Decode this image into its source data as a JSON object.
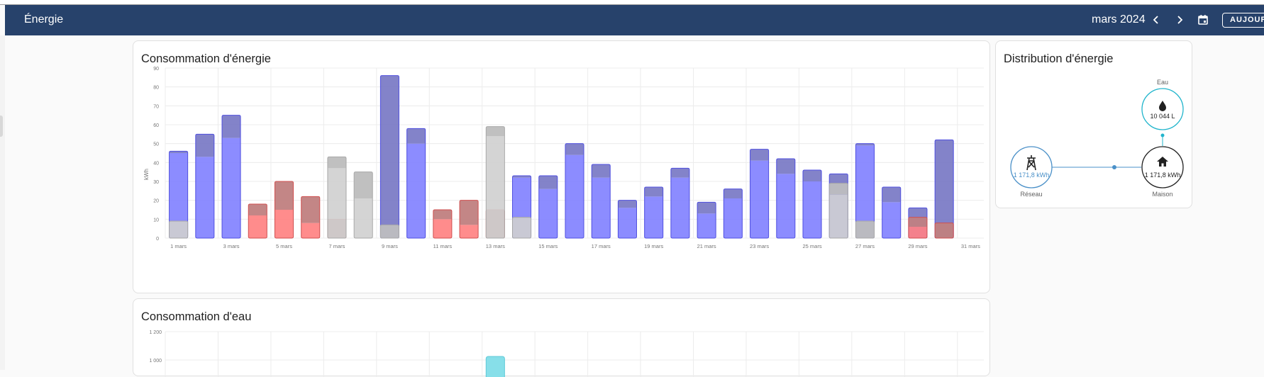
{
  "header": {
    "title": "Énergie",
    "period": "mars 2024",
    "today_label": "AUJOURD'HUI",
    "prev_icon": "chevron-left-icon",
    "next_icon": "chevron-right-icon",
    "calendar_icon": "calendar-icon"
  },
  "energy_card": {
    "title": "Consommation d'énergie"
  },
  "water_card": {
    "title": "Consommation d'eau"
  },
  "distribution_card": {
    "title": "Distribution d'énergie",
    "water_label": "Eau",
    "water_value": "10 044 L",
    "grid_label": "Réseau",
    "grid_value": "1 171,8 kWh",
    "home_label": "Maison",
    "home_value": "1 171,8 kWh"
  },
  "colors": {
    "header_bg": "#27426b",
    "low_tariff": "#8080ff",
    "low_tariff_top": "#7c7cc6",
    "high_tariff": "#ff8080",
    "high_tariff_top": "#c08080",
    "other": "#cfcfcf",
    "other_top": "#bdbdbd",
    "water": "#87dfe9",
    "distribution_line": "#4a90c8",
    "water_circle": "#21b5cc"
  },
  "chart_data": [
    {
      "type": "bar",
      "stacked": true,
      "title": "Consommation d'énergie",
      "ylabel": "kWh",
      "ylim": [
        0,
        90
      ],
      "yticks": [
        0,
        10,
        20,
        30,
        40,
        50,
        60,
        70,
        80,
        90
      ],
      "xtick_labels": [
        "1 mars",
        "3 mars",
        "5 mars",
        "7 mars",
        "9 mars",
        "11 mars",
        "13 mars",
        "15 mars",
        "17 mars",
        "19 mars",
        "21 mars",
        "23 mars",
        "25 mars",
        "27 mars",
        "29 mars",
        "31 mars"
      ],
      "categories": [
        "1",
        "2",
        "3",
        "4",
        "5",
        "6",
        "7",
        "8",
        "9",
        "10",
        "11",
        "12",
        "13",
        "14",
        "15",
        "16",
        "17",
        "18",
        "19",
        "20",
        "21",
        "22",
        "23",
        "24",
        "25",
        "26",
        "27",
        "28",
        "29",
        "30",
        "31"
      ],
      "series": [
        {
          "type": "blue",
          "values": [
            [
              46,
              45
            ],
            [
              55,
              43
            ],
            [
              65,
              53
            ],
            [
              0,
              0
            ],
            [
              0,
              0
            ],
            [
              0,
              0
            ],
            [
              0,
              0
            ],
            [
              0,
              0
            ],
            [
              86,
              7
            ],
            [
              58,
              50
            ],
            [
              0,
              0
            ],
            [
              0,
              0
            ],
            [
              0,
              0
            ],
            [
              33,
              32
            ],
            [
              33,
              26
            ],
            [
              50,
              44
            ],
            [
              39,
              32
            ],
            [
              20,
              16
            ],
            [
              27,
              22
            ],
            [
              37,
              32
            ],
            [
              19,
              13
            ],
            [
              26,
              21
            ],
            [
              47,
              41
            ],
            [
              42,
              34
            ],
            [
              36,
              30
            ],
            [
              34,
              29
            ],
            [
              50,
              49
            ],
            [
              27,
              19
            ],
            [
              16,
              11
            ],
            [
              52,
              0
            ],
            [
              0,
              0
            ]
          ]
        },
        {
          "type": "red",
          "values": [
            [
              0,
              0
            ],
            [
              0,
              0
            ],
            [
              0,
              0
            ],
            [
              18,
              12
            ],
            [
              30,
              15
            ],
            [
              22,
              8
            ],
            [
              10,
              0
            ],
            [
              0,
              0
            ],
            [
              0,
              0
            ],
            [
              0,
              0
            ],
            [
              15,
              10
            ],
            [
              20,
              7
            ],
            [
              15,
              0
            ],
            [
              0,
              0
            ],
            [
              0,
              0
            ],
            [
              0,
              0
            ],
            [
              0,
              0
            ],
            [
              0,
              0
            ],
            [
              0,
              0
            ],
            [
              0,
              0
            ],
            [
              0,
              0
            ],
            [
              0,
              0
            ],
            [
              0,
              0
            ],
            [
              0,
              0
            ],
            [
              0,
              0
            ],
            [
              0,
              0
            ],
            [
              0,
              0
            ],
            [
              0,
              0
            ],
            [
              11,
              6
            ],
            [
              8,
              0
            ],
            [
              0,
              0
            ]
          ]
        },
        {
          "type": "grey",
          "values": [
            [
              9,
              9
            ],
            [
              0,
              0
            ],
            [
              0,
              0
            ],
            [
              0,
              0
            ],
            [
              0,
              0
            ],
            [
              0,
              0
            ],
            [
              43,
              37
            ],
            [
              35,
              21
            ],
            [
              7,
              0
            ],
            [
              0,
              0
            ],
            [
              0,
              0
            ],
            [
              0,
              0
            ],
            [
              59,
              54
            ],
            [
              11,
              11
            ],
            [
              0,
              0
            ],
            [
              0,
              0
            ],
            [
              0,
              0
            ],
            [
              0,
              0
            ],
            [
              0,
              0
            ],
            [
              0,
              0
            ],
            [
              0,
              0
            ],
            [
              0,
              0
            ],
            [
              0,
              0
            ],
            [
              0,
              0
            ],
            [
              0,
              0
            ],
            [
              29,
              23
            ],
            [
              9,
              0
            ],
            [
              0,
              0
            ],
            [
              0,
              0
            ],
            [
              0,
              0
            ],
            [
              0,
              0
            ]
          ]
        }
      ]
    },
    {
      "type": "bar",
      "title": "Consommation d'eau",
      "yticks": [
        "1 200",
        "1 000"
      ],
      "ylim": [
        0,
        1200
      ],
      "categories": [
        "1",
        "2",
        "3",
        "4",
        "5",
        "6",
        "7",
        "8",
        "9",
        "10",
        "11",
        "12",
        "13",
        "14",
        "15",
        "16",
        "17",
        "18",
        "19",
        "20",
        "21",
        "22",
        "23",
        "24",
        "25",
        "26",
        "27",
        "28",
        "29",
        "30",
        "31"
      ],
      "values": [
        null,
        null,
        null,
        null,
        null,
        null,
        null,
        null,
        null,
        null,
        null,
        null,
        1000,
        null,
        null,
        null,
        null,
        null,
        null,
        null,
        null,
        null,
        null,
        null,
        null,
        null,
        null,
        null,
        null,
        null,
        null
      ]
    }
  ]
}
